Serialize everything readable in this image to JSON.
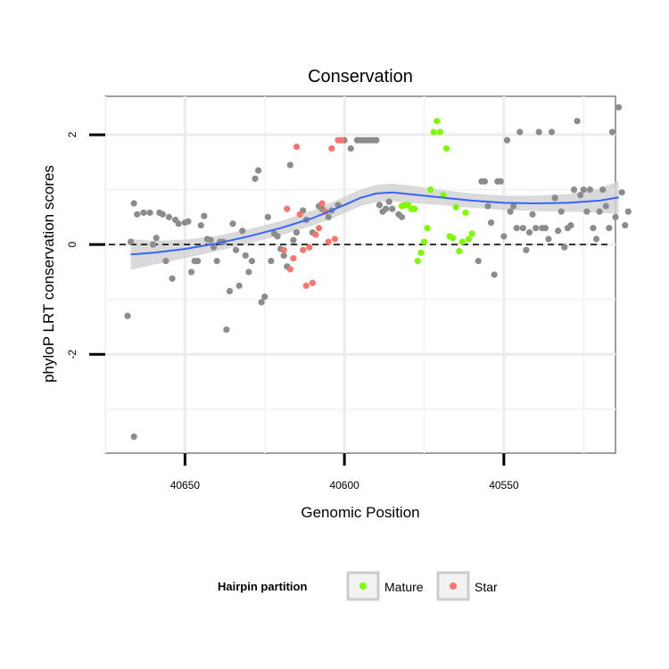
{
  "chart_data": {
    "type": "scatter",
    "title": "Conservation",
    "xlabel": "Genomic Position",
    "ylabel": "phyloP LRT conservation scores",
    "x_reversed": true,
    "xlim": [
      40675,
      40515
    ],
    "ylim": [
      -3.8,
      2.7
    ],
    "x_ticks": [
      40650,
      40600,
      40550
    ],
    "y_ticks": [
      -2,
      0,
      2
    ],
    "grid": true,
    "reference_line": {
      "y": 0,
      "style": "dashed"
    },
    "legend": {
      "title": "Hairpin partition",
      "position": "bottom",
      "entries": [
        {
          "label": "Mature",
          "color": "#7CFC00"
        },
        {
          "label": "Star",
          "color": "#F8766D"
        }
      ]
    },
    "colors": {
      "other": "#8c8c8c",
      "smooth": "#3366FF",
      "band": "#d4d4d4"
    },
    "series": [
      {
        "name": "",
        "color": "#8c8c8c",
        "points": [
          [
            40667,
            0.05
          ],
          [
            40666,
            0.75
          ],
          [
            40665,
            0.55
          ],
          [
            40663,
            0.58
          ],
          [
            40661,
            0.58
          ],
          [
            40660,
            0.0
          ],
          [
            40659,
            0.12
          ],
          [
            40658,
            0.58
          ],
          [
            40657,
            0.55
          ],
          [
            40656,
            -0.3
          ],
          [
            40655,
            0.5
          ],
          [
            40654,
            -0.62
          ],
          [
            40653,
            0.45
          ],
          [
            40652,
            0.38
          ],
          [
            40650,
            0.4
          ],
          [
            40649,
            0.42
          ],
          [
            40648,
            -0.5
          ],
          [
            40647,
            -0.3
          ],
          [
            40646,
            -0.3
          ],
          [
            40645,
            0.35
          ],
          [
            40644,
            0.52
          ],
          [
            40643,
            0.1
          ],
          [
            40642,
            0.08
          ],
          [
            40641,
            -0.05
          ],
          [
            40640,
            -0.3
          ],
          [
            40639,
            0.05
          ],
          [
            40638,
            0.05
          ],
          [
            40637,
            -1.55
          ],
          [
            40636,
            -0.85
          ],
          [
            40635,
            0.38
          ],
          [
            40634,
            -0.1
          ],
          [
            40633,
            -0.75
          ],
          [
            40632,
            0.25
          ],
          [
            40631,
            -0.2
          ],
          [
            40630,
            -0.5
          ],
          [
            40629,
            -0.3
          ],
          [
            40628,
            1.2
          ],
          [
            40627,
            1.35
          ],
          [
            40626,
            -1.05
          ],
          [
            40625,
            -0.95
          ],
          [
            40624,
            0.5
          ],
          [
            40623,
            -0.3
          ],
          [
            40622,
            0.2
          ],
          [
            40621,
            0.15
          ],
          [
            40620,
            -0.08
          ],
          [
            40619,
            -0.2
          ],
          [
            40618,
            -0.4
          ],
          [
            40617,
            1.45
          ],
          [
            40616,
            0.08
          ],
          [
            40615,
            0.22
          ],
          [
            40613,
            0.62
          ],
          [
            40612,
            0.45
          ],
          [
            40610,
            0.22
          ],
          [
            40608,
            0.7
          ],
          [
            40607,
            0.65
          ],
          [
            40605,
            0.5
          ],
          [
            40604,
            0.62
          ],
          [
            40602,
            0.72
          ],
          [
            40600,
            1.9
          ],
          [
            40598,
            1.75
          ],
          [
            40596,
            1.9
          ],
          [
            40595,
            1.9
          ],
          [
            40594,
            1.9
          ],
          [
            40593,
            1.9
          ],
          [
            40592,
            1.9
          ],
          [
            40591,
            1.9
          ],
          [
            40590,
            1.9
          ],
          [
            40589,
            0.72
          ],
          [
            40588,
            0.6
          ],
          [
            40587,
            0.65
          ],
          [
            40586,
            0.78
          ],
          [
            40585,
            0.65
          ],
          [
            40583,
            0.55
          ],
          [
            40582,
            0.5
          ],
          [
            40558,
            -0.3
          ],
          [
            40557,
            1.15
          ],
          [
            40556,
            1.15
          ],
          [
            40555,
            0.7
          ],
          [
            40554,
            0.4
          ],
          [
            40553,
            -0.55
          ],
          [
            40552,
            1.15
          ],
          [
            40551,
            1.15
          ],
          [
            40550,
            0.15
          ],
          [
            40549,
            1.9
          ],
          [
            40548,
            0.6
          ],
          [
            40547,
            0.7
          ],
          [
            40546,
            0.3
          ],
          [
            40545,
            2.05
          ],
          [
            40544,
            0.3
          ],
          [
            40543,
            -0.1
          ],
          [
            40542,
            0.22
          ],
          [
            40541,
            0.55
          ],
          [
            40540,
            0.3
          ],
          [
            40539,
            2.05
          ],
          [
            40538,
            0.3
          ],
          [
            40537,
            0.3
          ],
          [
            40536,
            0.1
          ],
          [
            40535,
            2.05
          ],
          [
            40534,
            0.85
          ],
          [
            40533,
            0.25
          ],
          [
            40532,
            0.6
          ],
          [
            40531,
            -0.05
          ],
          [
            40530,
            0.3
          ],
          [
            40529,
            0.35
          ],
          [
            40528,
            1.0
          ],
          [
            40527,
            2.25
          ],
          [
            40526,
            0.9
          ],
          [
            40525,
            1.0
          ],
          [
            40524,
            0.6
          ],
          [
            40523,
            1.0
          ],
          [
            40522,
            0.3
          ],
          [
            40521,
            0.1
          ],
          [
            40520,
            0.6
          ],
          [
            40519,
            1.0
          ],
          [
            40518,
            0.7
          ],
          [
            40517,
            0.3
          ],
          [
            40516,
            2.05
          ],
          [
            40515,
            0.5
          ],
          [
            40514,
            2.5
          ],
          [
            40513,
            0.95
          ],
          [
            40512,
            0.35
          ],
          [
            40511,
            0.6
          ],
          [
            40668,
            -1.3
          ],
          [
            40666,
            -3.5
          ]
        ]
      },
      {
        "name": "Mature",
        "color": "#7CFC00",
        "points": [
          [
            40582,
            0.7
          ],
          [
            40581,
            0.72
          ],
          [
            40580,
            0.72
          ],
          [
            40579,
            0.65
          ],
          [
            40578,
            0.65
          ],
          [
            40577,
            -0.3
          ],
          [
            40576,
            -0.15
          ],
          [
            40575,
            0.05
          ],
          [
            40574,
            0.3
          ],
          [
            40573,
            1.0
          ],
          [
            40572,
            2.05
          ],
          [
            40571,
            2.25
          ],
          [
            40570,
            2.05
          ],
          [
            40569,
            0.9
          ],
          [
            40568,
            1.75
          ],
          [
            40567,
            0.15
          ],
          [
            40566,
            0.12
          ],
          [
            40565,
            0.68
          ],
          [
            40564,
            -0.12
          ],
          [
            40563,
            0.05
          ],
          [
            40562,
            0.58
          ],
          [
            40561,
            0.1
          ],
          [
            40560,
            0.2
          ]
        ]
      },
      {
        "name": "Star",
        "color": "#F8766D",
        "points": [
          [
            40619,
            -0.1
          ],
          [
            40618,
            0.65
          ],
          [
            40617,
            -0.45
          ],
          [
            40616,
            -0.25
          ],
          [
            40615,
            1.78
          ],
          [
            40614,
            0.55
          ],
          [
            40613,
            -0.1
          ],
          [
            40612,
            -0.75
          ],
          [
            40611,
            -0.05
          ],
          [
            40610,
            -0.7
          ],
          [
            40609,
            0.18
          ],
          [
            40608,
            0.3
          ],
          [
            40607,
            0.75
          ],
          [
            40606,
            0.6
          ],
          [
            40605,
            0.05
          ],
          [
            40604,
            1.75
          ],
          [
            40603,
            0.1
          ],
          [
            40602,
            1.9
          ],
          [
            40601,
            1.9
          ]
        ]
      }
    ],
    "smooth_line": {
      "x": [
        40667,
        40660,
        40650,
        40640,
        40630,
        40620,
        40610,
        40600,
        40595,
        40590,
        40585,
        40580,
        40570,
        40560,
        40550,
        40540,
        40530,
        40520,
        40514
      ],
      "y": [
        -0.18,
        -0.15,
        -0.08,
        0.02,
        0.15,
        0.3,
        0.48,
        0.72,
        0.85,
        0.93,
        0.95,
        0.92,
        0.86,
        0.8,
        0.76,
        0.75,
        0.76,
        0.8,
        0.86
      ],
      "se": [
        0.28,
        0.22,
        0.17,
        0.14,
        0.13,
        0.13,
        0.14,
        0.15,
        0.15,
        0.16,
        0.16,
        0.16,
        0.14,
        0.13,
        0.13,
        0.14,
        0.16,
        0.22,
        0.3
      ]
    }
  }
}
